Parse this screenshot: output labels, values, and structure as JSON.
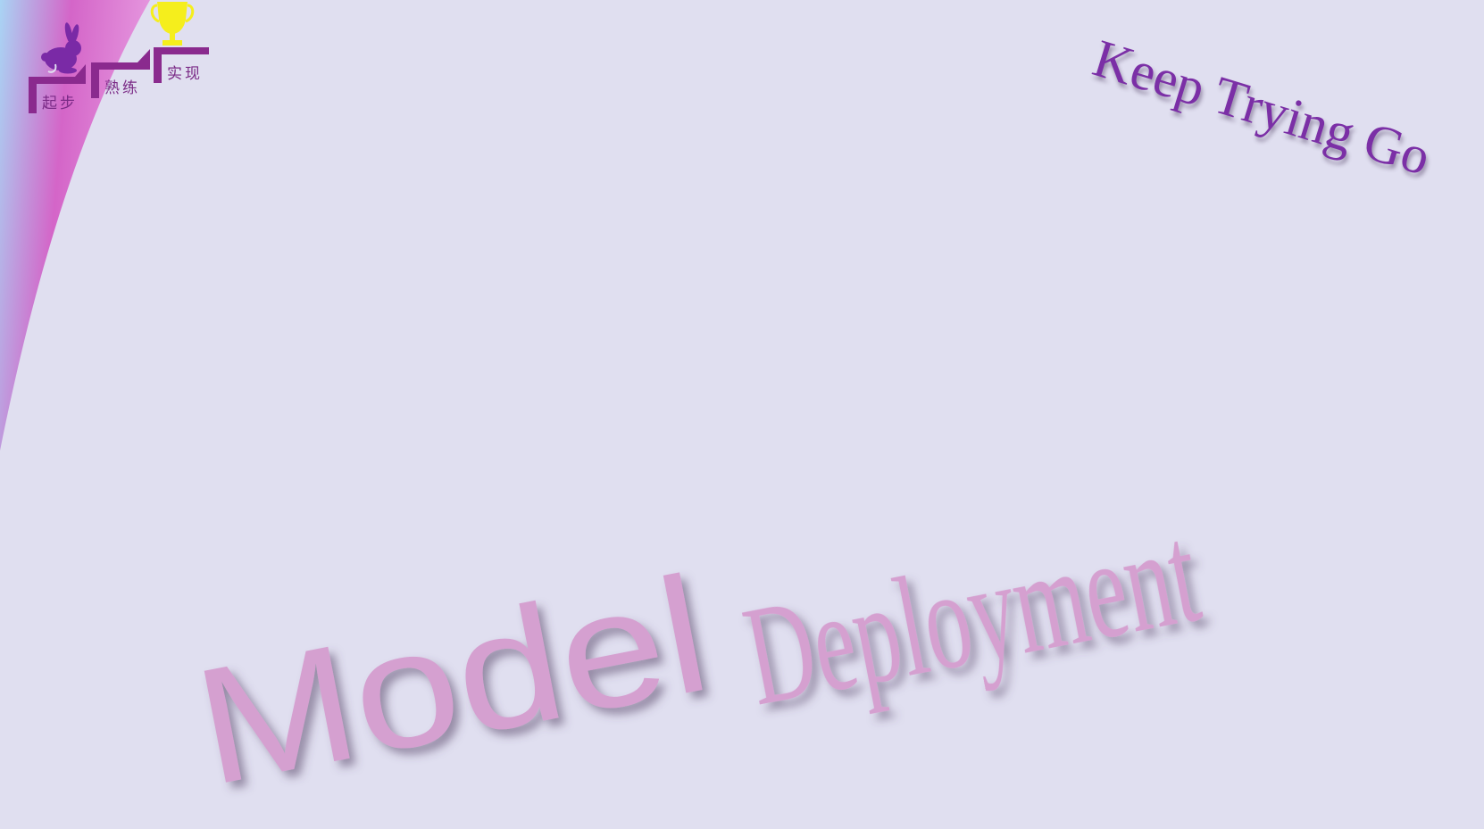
{
  "slide": {
    "background_color": "#e0dff0",
    "swoosh_colors": [
      "#a9d4f4",
      "#d465c8",
      "#e69ae0"
    ]
  },
  "logo": {
    "icon": "rabbit-icon",
    "trophy_icon": "trophy-icon",
    "steps": [
      {
        "label": "起步"
      },
      {
        "label": "熟练"
      },
      {
        "label": "实现"
      }
    ],
    "step_color": "#8a2a8e",
    "trophy_color": "#f5ee1c",
    "rabbit_color": "#7a2aa6"
  },
  "tagline": {
    "text": "Keep Trying Go",
    "color": "#7b2fa6"
  },
  "title": {
    "word1": "Model",
    "word2": "Deployment",
    "color": "#d5a0d0"
  }
}
